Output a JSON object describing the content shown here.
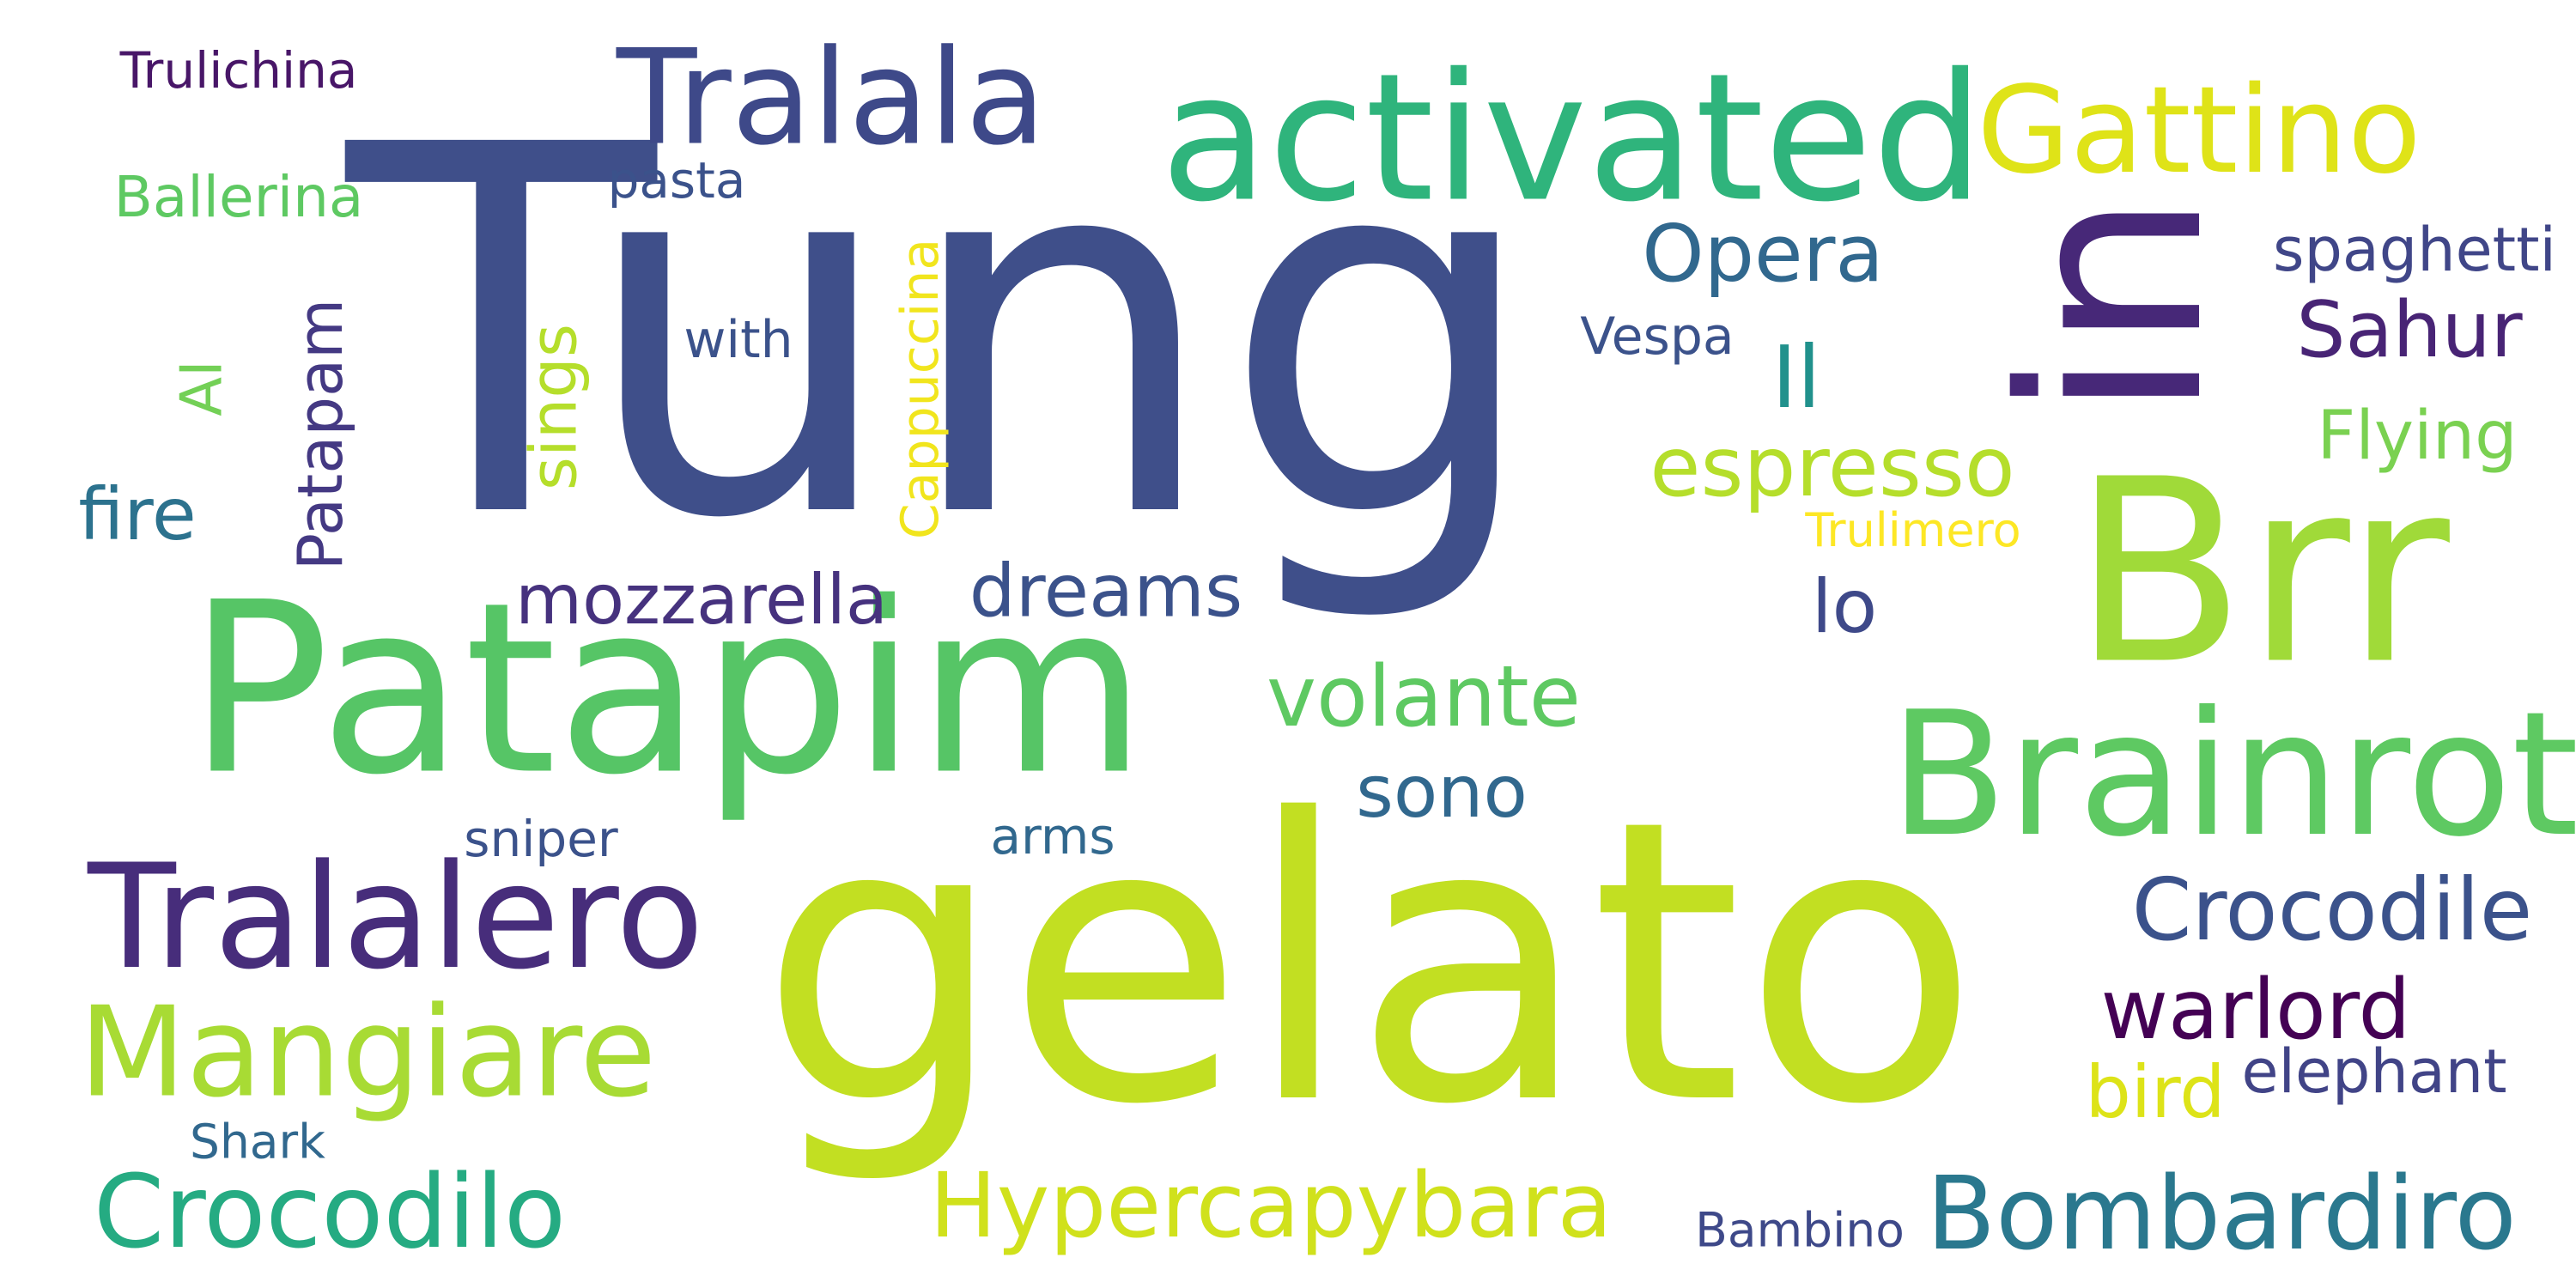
{
  "words": [
    {
      "text": "Tung",
      "color": "#3f4f8a",
      "vertical": false
    },
    {
      "text": "gelato",
      "color": "#c2df22",
      "vertical": false
    },
    {
      "text": "Patapim",
      "color": "#56c566",
      "vertical": false
    },
    {
      "text": "activated",
      "color": "#2fb47c",
      "vertical": false
    },
    {
      "text": "Brr",
      "color": "#a0da39",
      "vertical": false
    },
    {
      "text": "Brainrot",
      "color": "#5ec962",
      "vertical": false
    },
    {
      "text": "Tralalero",
      "color": "#472d7b",
      "vertical": false
    },
    {
      "text": "Tralala",
      "color": "#3e4989",
      "vertical": false
    },
    {
      "text": "Gattino",
      "color": "#dfe318",
      "vertical": false
    },
    {
      "text": "in",
      "color": "#472878",
      "vertical": true
    },
    {
      "text": "Mangiare",
      "color": "#a8db34",
      "vertical": false
    },
    {
      "text": "Crocodilo",
      "color": "#25ab82",
      "vertical": false
    },
    {
      "text": "Bombardiro",
      "color": "#2a788e",
      "vertical": false
    },
    {
      "text": "Hypercapybara",
      "color": "#d0e11c",
      "vertical": false
    },
    {
      "text": "Crocodile",
      "color": "#3b528b",
      "vertical": false
    },
    {
      "text": "warlord",
      "color": "#440154",
      "vertical": false
    },
    {
      "text": "volante",
      "color": "#5ec962",
      "vertical": false
    },
    {
      "text": "espresso",
      "color": "#b5de2b",
      "vertical": false
    },
    {
      "text": "Opera",
      "color": "#31688e",
      "vertical": false
    },
    {
      "text": "Sahur",
      "color": "#482475",
      "vertical": false
    },
    {
      "text": "dreams",
      "color": "#3b528b",
      "vertical": false
    },
    {
      "text": "mozzarella",
      "color": "#46327e",
      "vertical": false
    },
    {
      "text": "sono",
      "color": "#31688e",
      "vertical": false
    },
    {
      "text": "Patapam",
      "color": "#443983",
      "vertical": true
    },
    {
      "text": "fire",
      "color": "#2c728e",
      "vertical": false
    },
    {
      "text": "bird",
      "color": "#dde318",
      "vertical": false
    },
    {
      "text": "Il",
      "color": "#21918c",
      "vertical": false
    },
    {
      "text": "lo",
      "color": "#3e4989",
      "vertical": false
    },
    {
      "text": "Flying",
      "color": "#7ad151",
      "vertical": false
    },
    {
      "text": "elephant",
      "color": "#414487",
      "vertical": false
    },
    {
      "text": "spaghetti",
      "color": "#404688",
      "vertical": false
    },
    {
      "text": "sings",
      "color": "#b5de2b",
      "vertical": true
    },
    {
      "text": "Cappuccina",
      "color": "#f1e51d",
      "vertical": true
    },
    {
      "text": "AI",
      "color": "#73d056",
      "vertical": true
    },
    {
      "text": "Trulichina",
      "color": "#481668",
      "vertical": false
    },
    {
      "text": "Ballerina",
      "color": "#5ec962",
      "vertical": false
    },
    {
      "text": "Vespa",
      "color": "#3b528b",
      "vertical": false
    },
    {
      "text": "Trulimero",
      "color": "#fde725",
      "vertical": false
    },
    {
      "text": "pasta",
      "color": "#3b528b",
      "vertical": false
    },
    {
      "text": "with",
      "color": "#3b528b",
      "vertical": false
    },
    {
      "text": "sniper",
      "color": "#3b528b",
      "vertical": false
    },
    {
      "text": "arms",
      "color": "#31688e",
      "vertical": false
    },
    {
      "text": "Shark",
      "color": "#31688e",
      "vertical": false
    },
    {
      "text": "Bambino",
      "color": "#3e4989",
      "vertical": false
    }
  ]
}
